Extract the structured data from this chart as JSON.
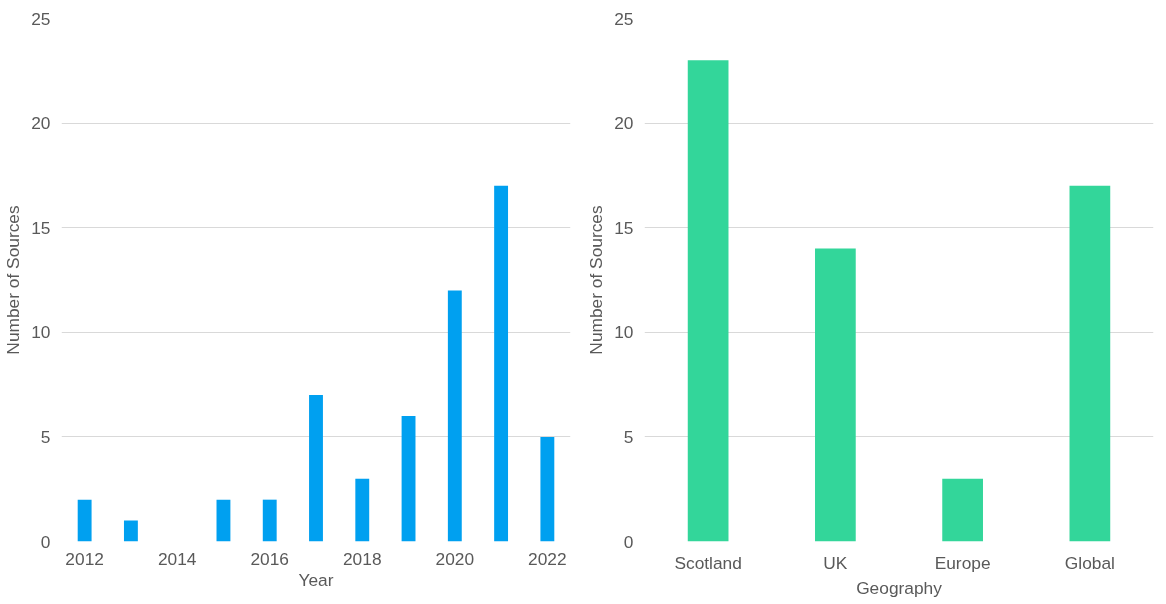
{
  "chart_data": [
    {
      "type": "bar",
      "xlabel": "Year",
      "ylabel": "Number of Sources",
      "x": [
        2012,
        2013,
        2014,
        2015,
        2016,
        2017,
        2018,
        2019,
        2020,
        2021,
        2022
      ],
      "values": [
        2,
        1,
        0,
        2,
        2,
        7,
        3,
        6,
        12,
        17,
        5
      ],
      "color": "#00a0f0",
      "xlim": [
        2011.5,
        2022.5
      ],
      "xticks": [
        2012,
        2014,
        2016,
        2018,
        2020,
        2022
      ],
      "ylim": [
        0,
        25
      ],
      "yticks": [
        0,
        5,
        10,
        15,
        20,
        25
      ],
      "grid": "y"
    },
    {
      "type": "bar",
      "xlabel": "Geography",
      "ylabel": "Number of Sources",
      "categories": [
        "Scotland",
        "UK",
        "Europe",
        "Global"
      ],
      "values": [
        23,
        14,
        3,
        17
      ],
      "color": "#33d69a",
      "ylim": [
        0,
        25
      ],
      "yticks": [
        0,
        5,
        10,
        15,
        20,
        25
      ],
      "grid": "y"
    }
  ]
}
